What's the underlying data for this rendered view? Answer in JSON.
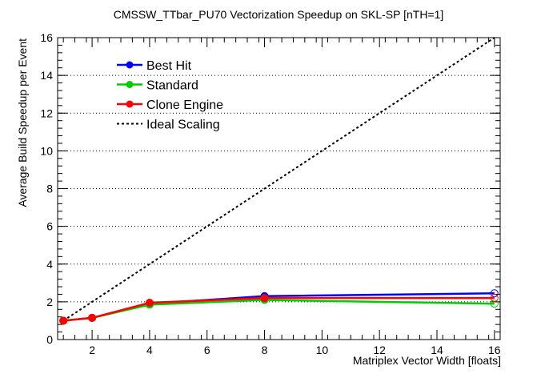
{
  "chart_data": {
    "type": "line",
    "title": "CMSSW_TTbar_PU70 Vectorization Speedup on SKL-SP [nTH=1]",
    "xlabel": "Matriplex Vector Width [floats]",
    "ylabel": "Average Build Speedup per Event",
    "xlim": [
      0.8,
      16.2
    ],
    "ylim": [
      0,
      16
    ],
    "xticks": [
      2,
      4,
      6,
      8,
      10,
      12,
      14,
      16
    ],
    "yticks": [
      0,
      2,
      4,
      6,
      8,
      10,
      12,
      14,
      16
    ],
    "grid": "horizontal-dotted",
    "legend_position": "top-left",
    "x": [
      1,
      2,
      4,
      8,
      16
    ],
    "series": [
      {
        "name": "Best Hit",
        "color": "#0000ff",
        "values": [
          1.0,
          1.15,
          1.9,
          2.3,
          2.45
        ]
      },
      {
        "name": "Standard",
        "color": "#00cc00",
        "values": [
          1.0,
          1.15,
          1.85,
          2.1,
          1.9
        ]
      },
      {
        "name": "Clone Engine",
        "color": "#ff0000",
        "values": [
          1.0,
          1.15,
          1.95,
          2.2,
          2.2
        ]
      }
    ],
    "ideal": {
      "name": "Ideal Scaling",
      "x": [
        1,
        16
      ],
      "values": [
        1,
        16
      ]
    }
  }
}
